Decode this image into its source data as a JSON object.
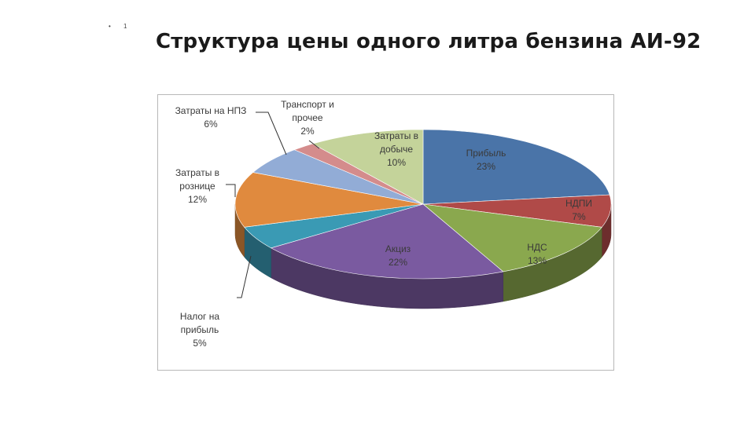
{
  "slide": {
    "bullet": "•",
    "number": "1"
  },
  "title": "Структура цены одного литра бензина АИ-92",
  "chart_data": {
    "type": "pie",
    "title": "",
    "three_d": true,
    "legend": "none",
    "slices": [
      {
        "label": "Прибыль",
        "value": 23,
        "value_text": "23%",
        "color": "#4a74a8"
      },
      {
        "label": "НДПИ",
        "value": 7,
        "value_text": "7%",
        "color": "#b04a48"
      },
      {
        "label": "НДС",
        "value": 13,
        "value_text": "13%",
        "color": "#8aa84e"
      },
      {
        "label": "Акциз",
        "value": 22,
        "value_text": "22%",
        "color": "#7a5aa0"
      },
      {
        "label": "Налог на прибыль",
        "label_lines": [
          "Налог на",
          "прибыль"
        ],
        "value": 5,
        "value_text": "5%",
        "color": "#3a9ab4"
      },
      {
        "label": "Затраты в рознице",
        "label_lines": [
          "Затраты в",
          "рознице"
        ],
        "value": 12,
        "value_text": "12%",
        "color": "#e08a3e"
      },
      {
        "label": "Затраты на НПЗ",
        "label_lines": [
          "Затраты на НПЗ"
        ],
        "value": 6,
        "value_text": "6%",
        "color": "#92acd6"
      },
      {
        "label": "Транспорт и прочее",
        "label_lines": [
          "Транспорт и",
          "прочее"
        ],
        "value": 2,
        "value_text": "2%",
        "color": "#d48c8c"
      },
      {
        "label": "Затраты в добыче",
        "label_lines": [
          "Затраты в",
          "добыче"
        ],
        "value": 10,
        "value_text": "10%",
        "color": "#c4d39a"
      }
    ]
  }
}
